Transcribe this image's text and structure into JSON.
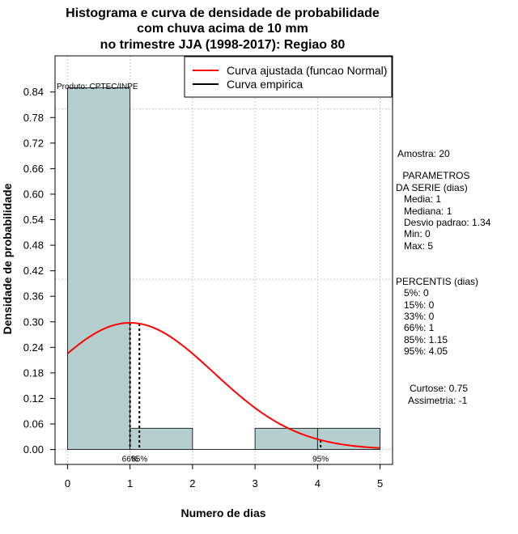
{
  "chart_data": {
    "type": "histogram",
    "title_lines": [
      "Histograma e curva de densidade de probabilidade",
      "com chuva acima de 10 mm",
      "no trimestre JJA (1998-2017): Regiao 80"
    ],
    "xlabel": "Numero de dias",
    "ylabel": "Densidade de probabilidade",
    "xlim": [
      -0.2,
      5.2
    ],
    "ylim": [
      -0.035,
      0.925
    ],
    "x_ticks": [
      "0",
      "1",
      "2",
      "3",
      "4",
      "5"
    ],
    "y_ticks": [
      "0.00",
      "0.06",
      "0.12",
      "0.18",
      "0.24",
      "0.30",
      "0.36",
      "0.42",
      "0.48",
      "0.54",
      "0.60",
      "0.66",
      "0.72",
      "0.78",
      "0.84"
    ],
    "bins": [
      {
        "x0": 0,
        "x1": 1,
        "density": 0.85
      },
      {
        "x0": 1,
        "x1": 2,
        "density": 0.05
      },
      {
        "x0": 2,
        "x1": 3,
        "density": 0.0
      },
      {
        "x0": 3,
        "x1": 4,
        "density": 0.05
      },
      {
        "x0": 4,
        "x1": 5,
        "density": 0.05
      }
    ],
    "normal_fit": {
      "mean": 1,
      "sd": 1.34
    },
    "percentile_lines": [
      {
        "x": 1.0,
        "label": "66%"
      },
      {
        "x": 1.15,
        "label": "85%"
      },
      {
        "x": 4.05,
        "label": "95%"
      }
    ],
    "legend": [
      {
        "label": "Curva ajustada (funcao Normal)",
        "color": "#ff0000"
      },
      {
        "label": "Curva empirica",
        "color": "#000000"
      }
    ],
    "bar_color": "#b5cece",
    "curve_color": "#ff0000"
  },
  "producer": "Produto: CPTEC/INPE",
  "sample": "Amostra: 20",
  "parametros": {
    "title1": " PARAMETROS",
    "title2": "DA SERIE (dias)",
    "items": [
      "Media: 1",
      "Mediana: 1",
      "Desvio padrao: 1.34",
      "Min: 0",
      "Max: 5"
    ]
  },
  "percentis": {
    "title": "PERCENTIS (dias)",
    "items": [
      "5%: 0",
      "15%: 0",
      "33%: 0",
      "66%: 1",
      "85%: 1.15",
      "95%: 4.05"
    ]
  },
  "curtose": "Curtose: 0.75",
  "assimetria": "Assimetria: -1"
}
